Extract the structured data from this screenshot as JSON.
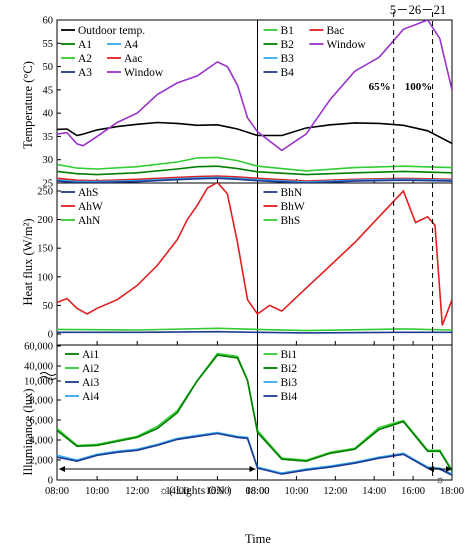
{
  "chart_data": [
    {
      "type": "line",
      "ylabel": "Temperature (°C)",
      "ylim": [
        25,
        60
      ],
      "yticks": [
        "25",
        "30",
        "35",
        "40",
        "45",
        "50",
        "55",
        "60"
      ],
      "time_label": "Time",
      "date_label": "5－26－21",
      "annotations": [
        {
          "text": "65%",
          "x": 15.0,
          "y": 45
        },
        {
          "text": "100%",
          "x": 17.0,
          "y": 45
        }
      ],
      "dashed_lines_x": [
        15.0,
        17.0
      ],
      "legend_left": [
        "Outdoor temp.",
        "A1",
        "A2",
        "A3",
        "A4",
        "Aac",
        "Window"
      ],
      "legend_right": [
        "B1",
        "B2",
        "B3",
        "B4",
        "Bac",
        "Window"
      ],
      "series": [
        {
          "name": "Outdoor temp.",
          "color": "#000000",
          "x": [
            8,
            8.5,
            9,
            9.3,
            10,
            11,
            12,
            13,
            14,
            15,
            16,
            17,
            18,
            19,
            20,
            21,
            22,
            23,
            24,
            25,
            26
          ],
          "y": [
            36.5,
            36.6,
            35.2,
            35.5,
            36.4,
            37.1,
            37.6,
            38.0,
            37.8,
            37.4,
            37.5,
            36.6,
            35.2,
            35.2,
            36.8,
            37.5,
            37.9,
            37.8,
            37.4,
            36.2,
            33.5
          ]
        },
        {
          "name": "Window",
          "color": "#9933cc",
          "x": [
            8,
            8.5,
            9,
            9.3,
            10,
            11,
            12,
            13,
            14,
            15,
            16,
            16.5,
            17,
            17.5,
            18,
            19,
            20,
            21,
            22,
            23,
            24,
            25,
            25.5,
            26
          ],
          "y": [
            35.5,
            35.8,
            33.4,
            33.0,
            35.0,
            38.0,
            40.0,
            44.0,
            46.5,
            48.0,
            51.0,
            50.0,
            46.0,
            39.0,
            36.0,
            32.0,
            35.5,
            43.0,
            49.0,
            52.0,
            58.0,
            60.0,
            56.0,
            45.0
          ]
        },
        {
          "name": "A2",
          "color": "#33cc33",
          "x": [
            8,
            9,
            10,
            12,
            14,
            15,
            16,
            17,
            18,
            20,
            22,
            24,
            26
          ],
          "y": [
            29.0,
            28.2,
            28.0,
            28.5,
            29.5,
            30.4,
            30.5,
            29.8,
            28.6,
            27.6,
            28.3,
            28.6,
            28.3
          ]
        },
        {
          "name": "A1",
          "color": "#007f00",
          "x": [
            8,
            9,
            10,
            12,
            14,
            15,
            16,
            17,
            18,
            20,
            22,
            24,
            26
          ],
          "y": [
            27.5,
            27.0,
            26.8,
            27.2,
            28.0,
            28.5,
            28.6,
            28.1,
            27.4,
            26.8,
            27.2,
            27.5,
            27.2
          ]
        },
        {
          "name": "Aac",
          "color": "#e02020",
          "x": [
            8,
            9,
            10,
            12,
            14,
            15,
            16,
            17,
            18,
            20,
            22,
            24,
            26
          ],
          "y": [
            26.0,
            25.6,
            25.5,
            25.8,
            26.2,
            26.4,
            26.5,
            26.3,
            26.0,
            25.4,
            25.8,
            26.0,
            25.8
          ]
        },
        {
          "name": "A4",
          "color": "#33aaee",
          "x": [
            8,
            9,
            10,
            12,
            14,
            15,
            16,
            17,
            18,
            20,
            22,
            24,
            26
          ],
          "y": [
            25.6,
            25.3,
            25.3,
            25.5,
            25.9,
            26.1,
            26.2,
            26.0,
            25.7,
            25.2,
            25.6,
            25.8,
            25.6
          ]
        },
        {
          "name": "A3",
          "color": "#1f3a93",
          "x": [
            8,
            9,
            10,
            12,
            14,
            15,
            16,
            17,
            18,
            20,
            22,
            24,
            26
          ],
          "y": [
            25.4,
            25.1,
            25.1,
            25.3,
            25.7,
            25.9,
            26.0,
            25.8,
            25.5,
            25.0,
            25.4,
            25.6,
            25.4
          ]
        }
      ]
    },
    {
      "type": "line",
      "ylabel": "Heat flux (W/m²)",
      "ylim": [
        0,
        250
      ],
      "yticks": [
        "0",
        "50",
        "100",
        "150",
        "200",
        "250"
      ],
      "legend_left": [
        "AhS",
        "AhW",
        "AhN"
      ],
      "legend_right": [
        "BhN",
        "BhW",
        "BhS"
      ],
      "series": [
        {
          "name": "AhW",
          "color": "#e02020",
          "x": [
            8,
            8.5,
            9,
            9.5,
            10,
            11,
            12,
            13,
            14,
            14.5,
            15,
            15.5,
            16,
            16.5,
            17,
            17.5,
            18,
            18.5,
            19,
            20,
            21,
            22,
            23,
            24,
            24.5,
            25,
            25.3,
            25.6,
            26
          ],
          "y": [
            55,
            62,
            45,
            35,
            45,
            60,
            85,
            120,
            165,
            200,
            225,
            255,
            265,
            245,
            160,
            60,
            35,
            50,
            40,
            80,
            120,
            160,
            205,
            250,
            195,
            205,
            190,
            15,
            60
          ]
        },
        {
          "name": "AhN",
          "color": "#33cc33",
          "x": [
            8,
            12,
            16,
            18,
            20,
            24,
            26
          ],
          "y": [
            8,
            7,
            10,
            8,
            6,
            9,
            7
          ]
        },
        {
          "name": "AhS",
          "color": "#1f3a93",
          "x": [
            8,
            12,
            16,
            18,
            20,
            24,
            26
          ],
          "y": [
            3,
            3,
            4,
            3,
            2,
            3,
            3
          ]
        }
      ]
    },
    {
      "type": "line",
      "ylabel": "Illuminance (lux)",
      "yticks": [
        "0",
        "2,000",
        "4,000",
        "6,000",
        "8,000",
        "10,000",
        "40,000",
        "60,000"
      ],
      "xticks": [
        "08:00",
        "10:00",
        "12:00",
        "14:00",
        "16:00",
        "18:00",
        "08:00",
        "10:00",
        "12:00",
        "14:00",
        "16:00",
        "18:00"
      ],
      "legend_left": [
        "Ai1",
        "Ai2",
        "Ai3",
        "Ai4"
      ],
      "legend_right": [
        "Bi1",
        "Bi2",
        "Bi3",
        "Bi4"
      ],
      "lights_label": "☼( Lights ON )",
      "sun_symbol": "☼",
      "series": [
        {
          "name": "Ai2",
          "color": "#33cc33",
          "x": [
            8,
            9,
            10,
            11,
            12,
            13,
            14,
            15,
            16,
            17,
            17.5,
            18,
            19,
            20,
            21,
            22,
            23,
            24,
            25,
            25.5,
            26
          ],
          "y": [
            5200,
            3500,
            3600,
            4000,
            4400,
            5400,
            7000,
            10500,
            48000,
            44000,
            11000,
            5000,
            2200,
            2000,
            2800,
            3200,
            5300,
            6000,
            3000,
            3000,
            1000
          ]
        },
        {
          "name": "Ai1",
          "color": "#007f00",
          "x": [
            8,
            9,
            10,
            11,
            12,
            13,
            14,
            15,
            16,
            17,
            17.5,
            18,
            19,
            20,
            21,
            22,
            23,
            24,
            25,
            25.5,
            26
          ],
          "y": [
            5000,
            3400,
            3500,
            3900,
            4300,
            5200,
            6800,
            10400,
            46000,
            42000,
            10800,
            4800,
            2100,
            1900,
            2700,
            3100,
            5100,
            5900,
            2900,
            2900,
            900
          ]
        },
        {
          "name": "Ai4",
          "color": "#33aaee",
          "x": [
            8,
            9,
            10,
            11,
            12,
            13,
            14,
            15,
            16,
            17,
            17.5,
            18,
            19,
            20,
            21,
            22,
            23,
            24,
            25,
            25.5,
            26
          ],
          "y": [
            2500,
            2000,
            2600,
            2900,
            3100,
            3600,
            4200,
            4500,
            4800,
            4400,
            4300,
            1300,
            700,
            1100,
            1400,
            1800,
            2300,
            2700,
            1300,
            1200,
            600
          ]
        },
        {
          "name": "Ai3",
          "color": "#1f3a93",
          "x": [
            8,
            9,
            10,
            11,
            12,
            13,
            14,
            15,
            16,
            17,
            17.5,
            18,
            19,
            20,
            21,
            22,
            23,
            24,
            25,
            25.5,
            26
          ],
          "y": [
            2300,
            1900,
            2500,
            2800,
            3000,
            3500,
            4100,
            4400,
            4700,
            4300,
            4200,
            1200,
            600,
            1000,
            1300,
            1700,
            2200,
            2600,
            1200,
            1100,
            500
          ]
        }
      ]
    }
  ]
}
